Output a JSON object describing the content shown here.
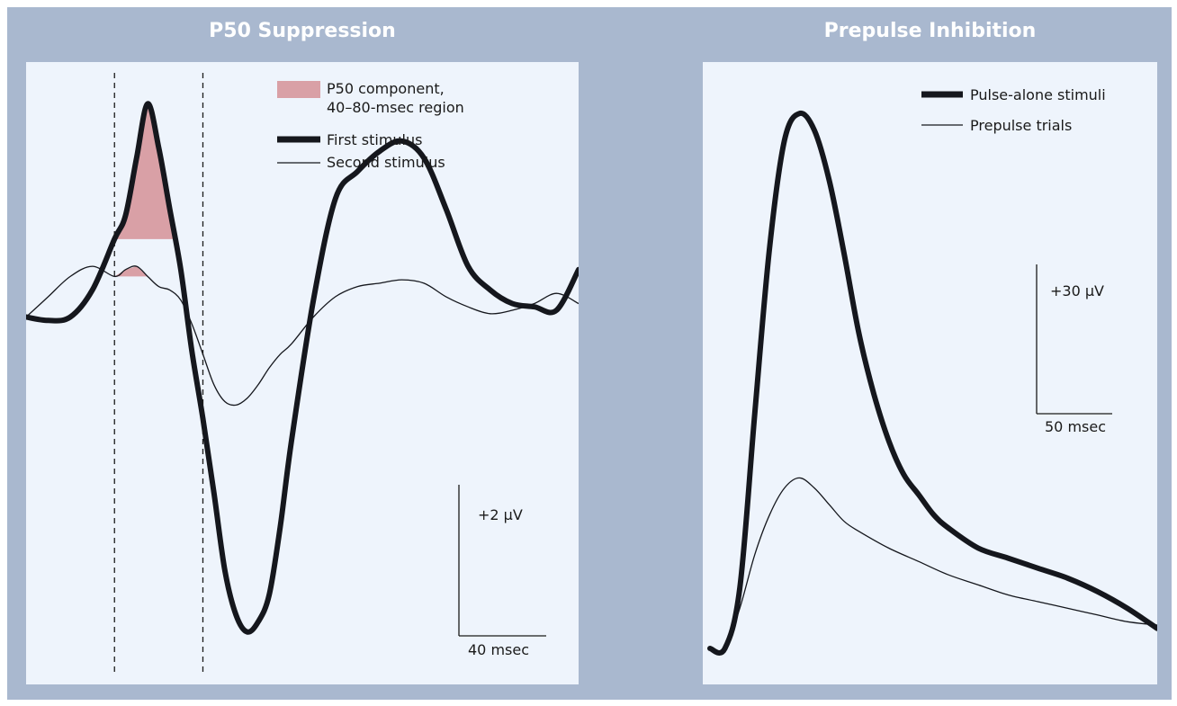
{
  "chart_data": [
    {
      "type": "line",
      "title": "P50 Suppression",
      "legend": [
        {
          "label_lines": [
            "P50 component,",
            "40–80-msec region"
          ],
          "style": "shaded",
          "color": "#d9a0a6"
        },
        {
          "label": "First stimulus",
          "style": "thick",
          "color": "#15171d"
        },
        {
          "label": "Second stimulus",
          "style": "thin",
          "color": "#15171d"
        }
      ],
      "scale_bar": {
        "vertical": "+2 µV",
        "horizontal": "40 msec"
      },
      "window_ms": [
        40,
        80
      ],
      "xlim": [
        0,
        250
      ],
      "ylim": [
        -10,
        7
      ],
      "series": [
        {
          "name": "First stimulus",
          "x": [
            0,
            10,
            20,
            30,
            40,
            45,
            50,
            55,
            60,
            65,
            70,
            75,
            80,
            85,
            90,
            95,
            100,
            105,
            110,
            115,
            120,
            130,
            140,
            150,
            160,
            170,
            180,
            190,
            200,
            210,
            220,
            230,
            240,
            250
          ],
          "values": [
            0.0,
            -0.1,
            0.0,
            0.8,
            2.3,
            3.0,
            4.7,
            6.3,
            5.0,
            3.2,
            1.4,
            -1.0,
            -3.0,
            -5.2,
            -7.5,
            -8.8,
            -9.3,
            -9.0,
            -8.2,
            -6.2,
            -3.7,
            0.5,
            3.5,
            4.3,
            4.9,
            5.2,
            4.7,
            3.2,
            1.5,
            0.8,
            0.4,
            0.3,
            0.2,
            1.4
          ]
        },
        {
          "name": "Second stimulus",
          "x": [
            0,
            10,
            20,
            30,
            40,
            45,
            50,
            55,
            60,
            65,
            70,
            75,
            80,
            85,
            90,
            95,
            100,
            105,
            110,
            115,
            120,
            130,
            140,
            150,
            160,
            170,
            180,
            190,
            200,
            210,
            220,
            230,
            240,
            250
          ],
          "values": [
            0.0,
            0.6,
            1.2,
            1.5,
            1.2,
            1.4,
            1.5,
            1.2,
            0.9,
            0.8,
            0.5,
            -0.2,
            -1.1,
            -2.0,
            -2.5,
            -2.6,
            -2.4,
            -2.0,
            -1.5,
            -1.1,
            -0.8,
            0.0,
            0.6,
            0.9,
            1.0,
            1.1,
            1.0,
            0.6,
            0.3,
            0.1,
            0.2,
            0.4,
            0.7,
            0.4
          ]
        }
      ]
    },
    {
      "type": "line",
      "title": "Prepulse Inhibition",
      "legend": [
        {
          "label": "Pulse-alone stimuli",
          "style": "thick",
          "color": "#15171d"
        },
        {
          "label": "Prepulse trials",
          "style": "thin",
          "color": "#15171d"
        }
      ],
      "scale_bar": {
        "vertical": "+30 µV",
        "horizontal": "50 msec"
      },
      "xlim": [
        0,
        300
      ],
      "ylim": [
        0,
        170
      ],
      "series": [
        {
          "name": "Pulse-alone stimuli",
          "x": [
            0,
            10,
            20,
            30,
            40,
            50,
            60,
            70,
            80,
            90,
            100,
            110,
            120,
            130,
            140,
            150,
            160,
            180,
            200,
            220,
            240,
            260,
            280,
            300
          ],
          "values": [
            0,
            0,
            18,
            70,
            120,
            152,
            160,
            155,
            140,
            118,
            94,
            76,
            62,
            52,
            46,
            40,
            36,
            30,
            27,
            24,
            21,
            17,
            12,
            6
          ]
        },
        {
          "name": "Prepulse trials",
          "x": [
            0,
            10,
            20,
            30,
            40,
            50,
            60,
            70,
            80,
            90,
            100,
            120,
            140,
            160,
            180,
            200,
            220,
            240,
            260,
            280,
            300
          ],
          "values": [
            0,
            0,
            12,
            28,
            40,
            48,
            51,
            48,
            43,
            38,
            35,
            30,
            26,
            22,
            19,
            16,
            14,
            12,
            10,
            8,
            7
          ]
        }
      ]
    }
  ]
}
